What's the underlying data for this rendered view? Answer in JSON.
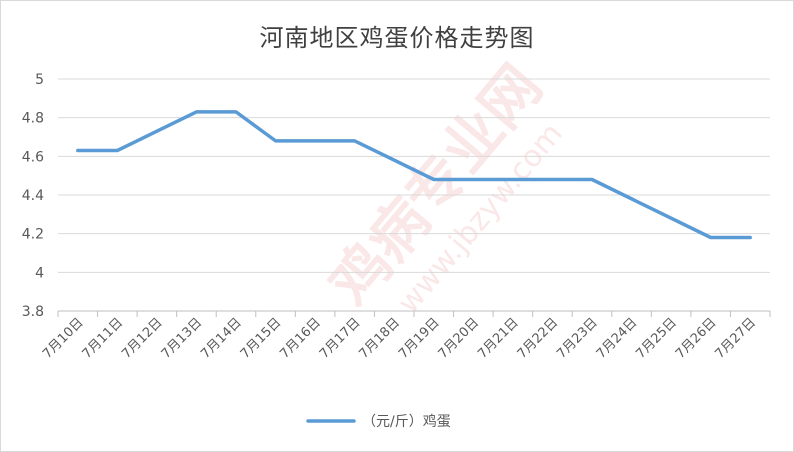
{
  "chart_data": {
    "type": "line",
    "title": "河南地区鸡蛋价格走势图",
    "categories": [
      "7月10日",
      "7月11日",
      "7月12日",
      "7月13日",
      "7月14日",
      "7月15日",
      "7月16日",
      "7月17日",
      "7月18日",
      "7月19日",
      "7月20日",
      "7月21日",
      "7月22日",
      "7月23日",
      "7月24日",
      "7月25日",
      "7月26日",
      "7月27日"
    ],
    "series": [
      {
        "name": "（元/斤）鸡蛋",
        "color": "#5b9bd5",
        "values": [
          4.63,
          4.63,
          null,
          4.83,
          4.83,
          4.68,
          4.68,
          4.68,
          null,
          4.48,
          4.48,
          4.48,
          4.48,
          4.48,
          null,
          null,
          4.18,
          4.18
        ]
      }
    ],
    "ylim": [
      3.8,
      5
    ],
    "yticks": [
      "3.8",
      "4",
      "4.2",
      "4.4",
      "4.6",
      "4.8",
      "5"
    ],
    "grid": true,
    "legend": "bottom",
    "watermark": "鸡病专业网 www.jbzyw.com"
  }
}
